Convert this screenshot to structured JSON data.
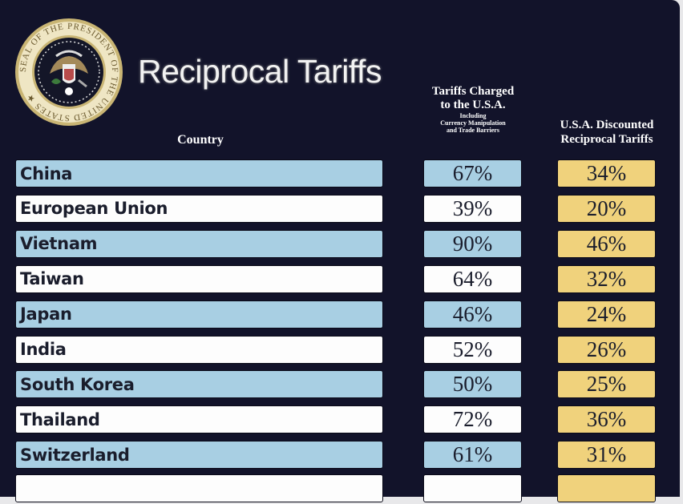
{
  "seal_text": "SEAL OF THE PRESIDENT OF THE UNITED STATES",
  "title": "Reciprocal Tariffs",
  "headers": {
    "country": "Country",
    "charged_line1": "Tariffs Charged",
    "charged_line2": "to the U.S.A.",
    "charged_note1": "Including",
    "charged_note2": "Currency Manipulation",
    "charged_note3": "and Trade Barriers",
    "discounted_line1": "U.S.A. Discounted",
    "discounted_line2": "Reciprocal Tariffs"
  },
  "colors": {
    "background": "#12132a",
    "blue": "#a8cfe3",
    "white": "#fdfdfd",
    "gold": "#f0d27c"
  },
  "rows": [
    {
      "country": "China",
      "charged": "67%",
      "discounted": "34%"
    },
    {
      "country": "European Union",
      "charged": "39%",
      "discounted": "20%"
    },
    {
      "country": "Vietnam",
      "charged": "90%",
      "discounted": "46%"
    },
    {
      "country": "Taiwan",
      "charged": "64%",
      "discounted": "32%"
    },
    {
      "country": "Japan",
      "charged": "46%",
      "discounted": "24%"
    },
    {
      "country": "India",
      "charged": "52%",
      "discounted": "26%"
    },
    {
      "country": "South Korea",
      "charged": "50%",
      "discounted": "25%"
    },
    {
      "country": "Thailand",
      "charged": "72%",
      "discounted": "36%"
    },
    {
      "country": "Switzerland",
      "charged": "61%",
      "discounted": "31%"
    }
  ]
}
